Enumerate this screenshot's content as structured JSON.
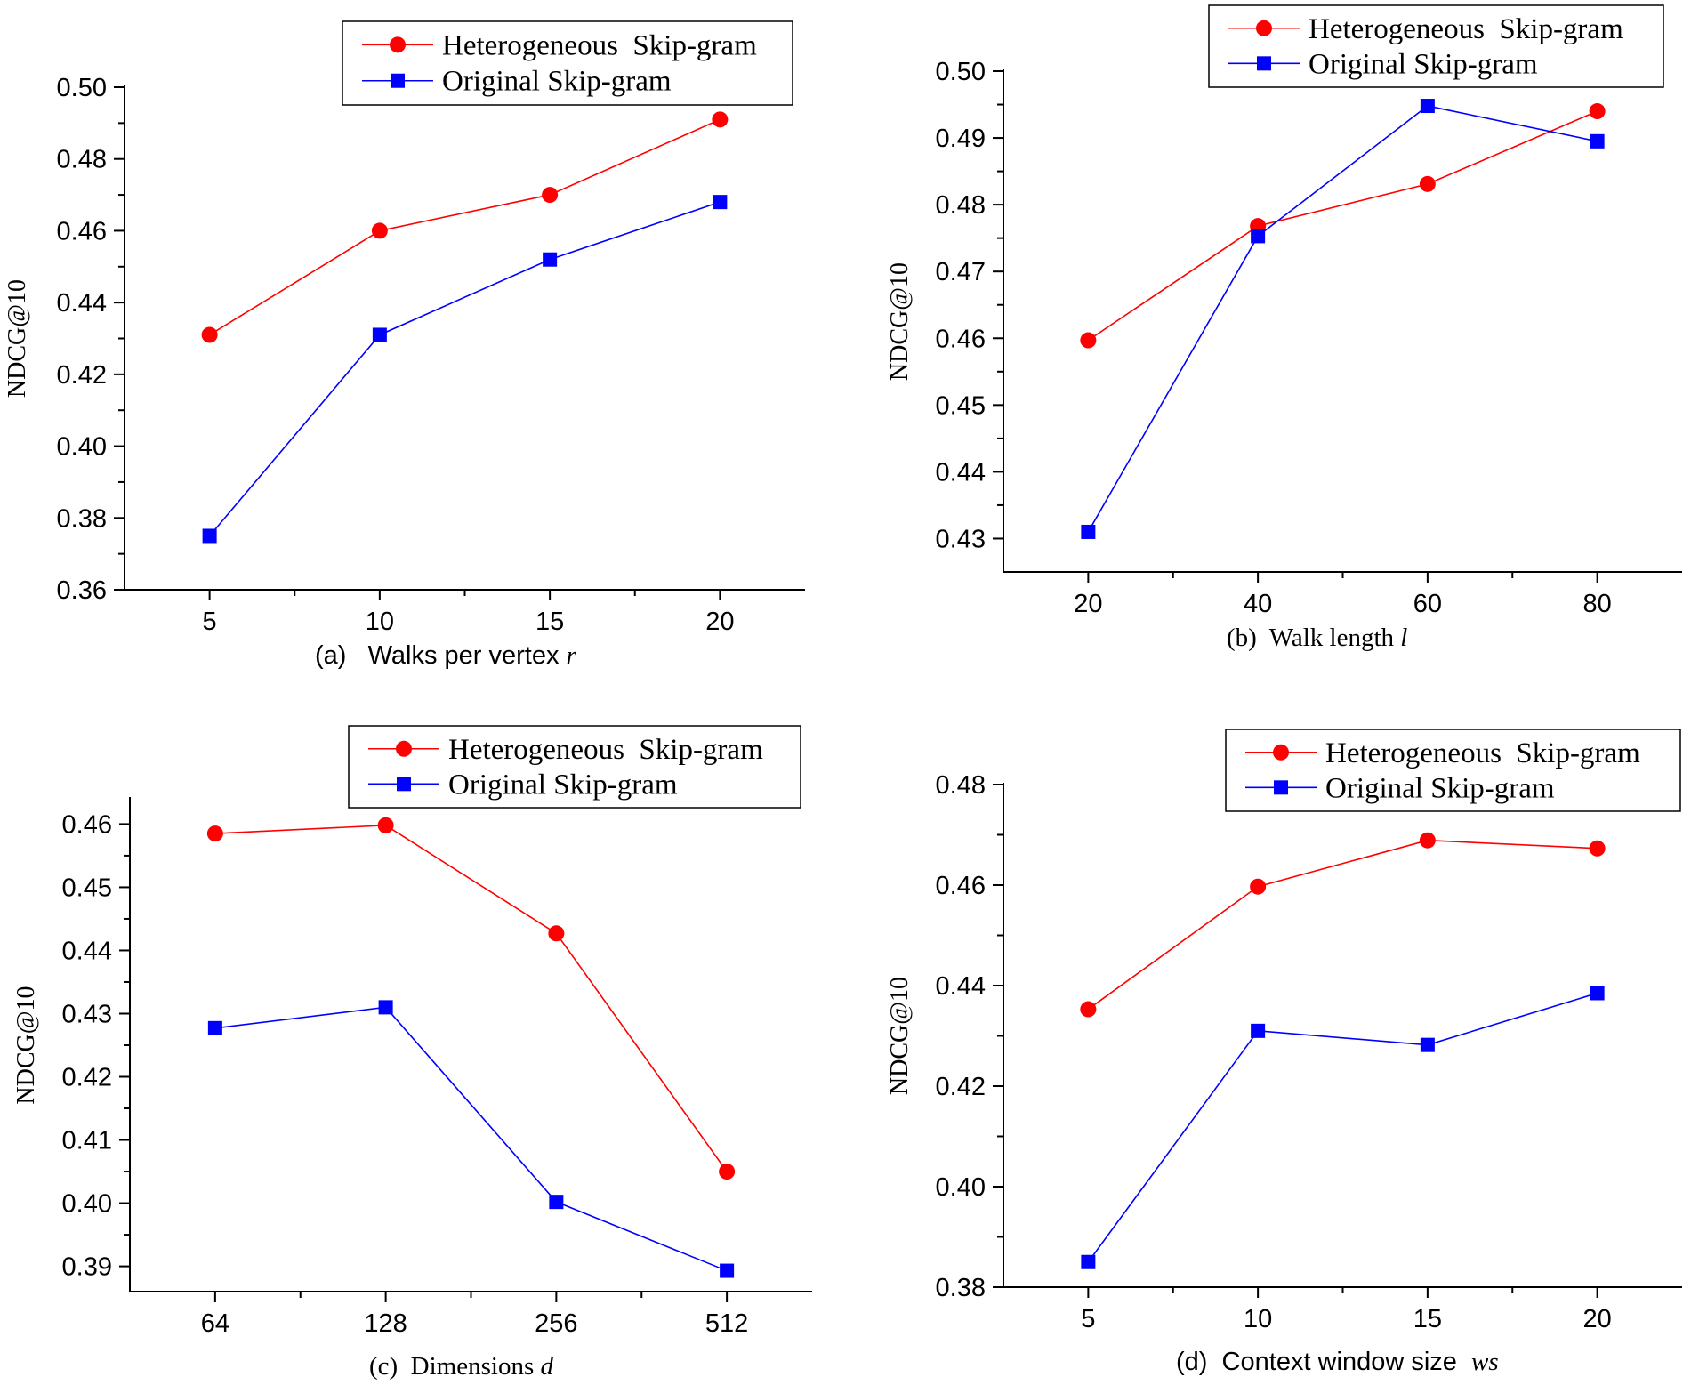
{
  "series_names": [
    "Heterogeneous  Skip-gram",
    "Original Skip-gram"
  ],
  "colors": {
    "series1": "#ff0000",
    "series2": "#0000ff",
    "axes": "#000000",
    "background": "#ffffff"
  },
  "chart_data": [
    {
      "type": "line",
      "caption": {
        "prefix": "(a)   Walks per vertex ",
        "var": "r"
      },
      "ylabel": "NDCG@10",
      "x": [
        5,
        10,
        15,
        20
      ],
      "x_tick_labels": [
        "5",
        "10",
        "15",
        "20"
      ],
      "xlim": [
        2.5,
        22.5
      ],
      "ylim": [
        0.36,
        0.5
      ],
      "y_ticks": [
        0.36,
        0.38,
        0.4,
        0.42,
        0.44,
        0.46,
        0.48,
        0.5
      ],
      "y_tick_labels": [
        "0.36",
        "0.38",
        "0.40",
        "0.42",
        "0.44",
        "0.46",
        "0.48",
        "0.50"
      ],
      "series": [
        {
          "name": "Heterogeneous  Skip-gram",
          "marker": "circle",
          "values": [
            0.431,
            0.46,
            0.47,
            0.491
          ]
        },
        {
          "name": "Original Skip-gram",
          "marker": "square",
          "values": [
            0.375,
            0.431,
            0.452,
            0.468
          ]
        }
      ],
      "legend": "top-right",
      "grid": false
    },
    {
      "type": "line",
      "caption": {
        "prefix": "(b)  Walk length ",
        "var": "l"
      },
      "ylabel": "NDCG@10",
      "x": [
        20,
        40,
        60,
        80
      ],
      "x_tick_labels": [
        "20",
        "40",
        "60",
        "80"
      ],
      "xlim": [
        10,
        90
      ],
      "ylim": [
        0.425,
        0.5
      ],
      "y_ticks": [
        0.43,
        0.44,
        0.45,
        0.46,
        0.47,
        0.48,
        0.49,
        0.5
      ],
      "y_tick_labels": [
        "0.43",
        "0.44",
        "0.45",
        "0.46",
        "0.47",
        "0.48",
        "0.49",
        "0.50"
      ],
      "series": [
        {
          "name": "Heterogeneous  Skip-gram",
          "marker": "circle",
          "values": [
            0.4597,
            0.4768,
            0.4831,
            0.494
          ]
        },
        {
          "name": "Original Skip-gram",
          "marker": "square",
          "values": [
            0.431,
            0.4753,
            0.4948,
            0.4895
          ]
        }
      ],
      "legend": "top-right",
      "grid": false
    },
    {
      "type": "line",
      "caption": {
        "prefix": "(c)  Dimensions ",
        "var": "d"
      },
      "ylabel": "NDCG@10",
      "x": [
        64,
        128,
        256,
        512
      ],
      "x_tick_labels": [
        "64",
        "128",
        "256",
        "512"
      ],
      "xlim": [
        0.5,
        4.5
      ],
      "ylim": [
        0.386,
        0.464
      ],
      "y_ticks": [
        0.39,
        0.4,
        0.41,
        0.42,
        0.43,
        0.44,
        0.45,
        0.46
      ],
      "y_tick_labels": [
        "0.39",
        "0.40",
        "0.41",
        "0.42",
        "0.43",
        "0.44",
        "0.45",
        "0.46"
      ],
      "series": [
        {
          "name": "Heterogeneous  Skip-gram",
          "marker": "circle",
          "values": [
            0.4585,
            0.4598,
            0.4427,
            0.405
          ]
        },
        {
          "name": "Original Skip-gram",
          "marker": "square",
          "values": [
            0.4277,
            0.431,
            0.4002,
            0.3893
          ]
        }
      ],
      "legend": "top-right",
      "grid": false
    },
    {
      "type": "line",
      "caption": {
        "prefix": "(d)  Context window size  ",
        "var": "ws"
      },
      "ylabel": "NDCG@10",
      "x": [
        5,
        10,
        15,
        20
      ],
      "x_tick_labels": [
        "5",
        "10",
        "15",
        "20"
      ],
      "xlim": [
        2.5,
        22.5
      ],
      "ylim": [
        0.38,
        0.48
      ],
      "y_ticks": [
        0.38,
        0.4,
        0.42,
        0.44,
        0.46,
        0.48
      ],
      "y_tick_labels": [
        "0.38",
        "0.40",
        "0.42",
        "0.44",
        "0.46",
        "0.48"
      ],
      "series": [
        {
          "name": "Heterogeneous  Skip-gram",
          "marker": "circle",
          "values": [
            0.4353,
            0.4597,
            0.4689,
            0.4673
          ]
        },
        {
          "name": "Original Skip-gram",
          "marker": "square",
          "values": [
            0.385,
            0.431,
            0.4282,
            0.4385
          ]
        }
      ],
      "legend": "top-right",
      "grid": false
    }
  ]
}
